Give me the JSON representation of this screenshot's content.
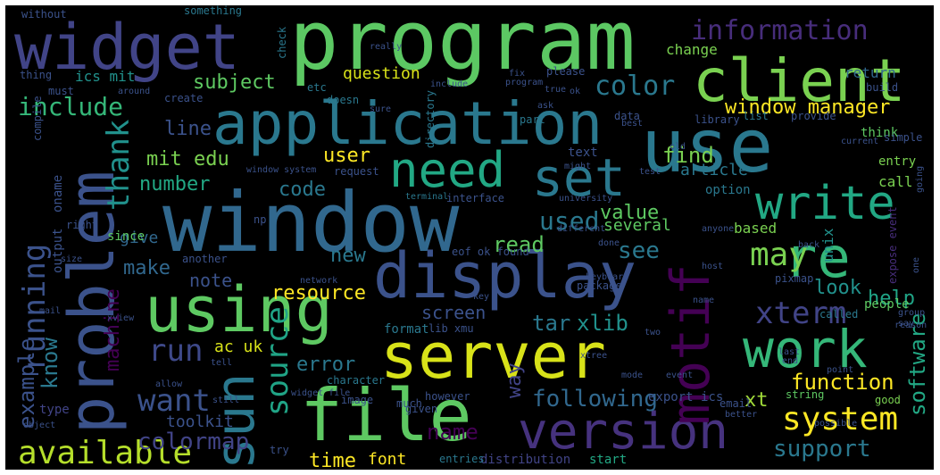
{
  "words": [
    {
      "text": "program",
      "color": "#5cc863"
    },
    {
      "text": "widget",
      "color": "#414487"
    },
    {
      "text": "client",
      "color": "#7ad151"
    },
    {
      "text": "application",
      "color": "#2a788e"
    },
    {
      "text": "use",
      "color": "#2a788e"
    },
    {
      "text": "window",
      "color": "#31688e"
    },
    {
      "text": "problem",
      "color": "#3b528b"
    },
    {
      "text": "display",
      "color": "#3b528b"
    },
    {
      "text": "using",
      "color": "#5ec962"
    },
    {
      "text": "server",
      "color": "#d8e219"
    },
    {
      "text": "file",
      "color": "#5ec962"
    },
    {
      "text": "version",
      "color": "#46327e"
    },
    {
      "text": "sun",
      "color": "#2a788e"
    },
    {
      "text": "motif",
      "color": "#440154"
    },
    {
      "text": "work",
      "color": "#35b779"
    },
    {
      "text": "re",
      "color": "#35b779"
    },
    {
      "text": "set",
      "color": "#2a788e"
    },
    {
      "text": "need",
      "color": "#22a884"
    },
    {
      "text": "write",
      "color": "#22a884"
    },
    {
      "text": "information",
      "color": "#472d7b"
    },
    {
      "text": "window manager",
      "color": "#fde725"
    },
    {
      "text": "include",
      "color": "#35b779"
    },
    {
      "text": "subject",
      "color": "#5ec962"
    },
    {
      "text": "color",
      "color": "#2a788e"
    },
    {
      "text": "thank",
      "color": "#21918c"
    },
    {
      "text": "line",
      "color": "#3b528b"
    },
    {
      "text": "mit edu",
      "color": "#7ad151"
    },
    {
      "text": "may",
      "color": "#7ad151"
    },
    {
      "text": "xterm",
      "color": "#414487"
    },
    {
      "text": "system",
      "color": "#fde725"
    },
    {
      "text": "available",
      "color": "#b5de2b"
    },
    {
      "text": "running",
      "color": "#3b528b"
    },
    {
      "text": "want",
      "color": "#3b528b"
    },
    {
      "text": "run",
      "color": "#3e4989"
    },
    {
      "text": "source",
      "color": "#20a486"
    },
    {
      "text": "error",
      "color": "#2a788e"
    },
    {
      "text": "function",
      "color": "#fde725"
    },
    {
      "text": "support",
      "color": "#2a788e"
    },
    {
      "text": "following",
      "color": "#31688e"
    },
    {
      "text": "colormap",
      "color": "#414487"
    },
    {
      "text": "example",
      "color": "#3b528b"
    },
    {
      "text": "know",
      "color": "#2a788e"
    },
    {
      "text": "machine",
      "color": "#440154"
    },
    {
      "text": "resource",
      "color": "#fde725"
    },
    {
      "text": "make",
      "color": "#31688e"
    },
    {
      "text": "note",
      "color": "#3b528b"
    },
    {
      "text": "screen",
      "color": "#3b528b"
    },
    {
      "text": "tar",
      "color": "#2a788e"
    },
    {
      "text": "xlib",
      "color": "#21918c"
    },
    {
      "text": "look",
      "color": "#21918c"
    },
    {
      "text": "help",
      "color": "#20a486"
    },
    {
      "text": "find",
      "color": "#7ad151"
    },
    {
      "text": "used",
      "color": "#2a788e"
    },
    {
      "text": "value",
      "color": "#5ec962"
    },
    {
      "text": "several",
      "color": "#5ec962"
    },
    {
      "text": "read",
      "color": "#5ec962"
    },
    {
      "text": "see",
      "color": "#2a788e"
    },
    {
      "text": "new",
      "color": "#2a788e"
    },
    {
      "text": "user",
      "color": "#fde725"
    },
    {
      "text": "code",
      "color": "#2a788e"
    },
    {
      "text": "number",
      "color": "#22a884"
    },
    {
      "text": "give",
      "color": "#31688e"
    },
    {
      "text": "time",
      "color": "#fde725"
    },
    {
      "text": "font",
      "color": "#fde725"
    },
    {
      "text": "name",
      "color": "#440154"
    },
    {
      "text": "xt",
      "color": "#a0da39"
    },
    {
      "text": "way",
      "color": "#414487"
    },
    {
      "text": "software",
      "color": "#22a884"
    },
    {
      "text": "question",
      "color": "#d8e219"
    },
    {
      "text": "ics mit",
      "color": "#21918c"
    },
    {
      "text": "ac uk",
      "color": "#d8e219"
    },
    {
      "text": "toolkit",
      "color": "#3b528b"
    },
    {
      "text": "article",
      "color": "#2a788e"
    },
    {
      "text": "change",
      "color": "#7ad151"
    },
    {
      "text": "return",
      "color": "#31688e"
    },
    {
      "text": "based",
      "color": "#7ad151"
    },
    {
      "text": "unix",
      "color": "#21918c"
    },
    {
      "text": "entry",
      "color": "#7ad151"
    },
    {
      "text": "call",
      "color": "#7ad151"
    },
    {
      "text": "option",
      "color": "#2a788e"
    },
    {
      "text": "text",
      "color": "#3b528b"
    },
    {
      "text": "people",
      "color": "#5ec962"
    },
    {
      "text": "output",
      "color": "#3b528b"
    },
    {
      "text": "oname",
      "color": "#3b528b"
    },
    {
      "text": "type",
      "color": "#414487"
    },
    {
      "text": "since",
      "color": "#5ec962"
    },
    {
      "text": "another",
      "color": "#3b528b"
    },
    {
      "text": "directory",
      "color": "#2a788e"
    },
    {
      "text": "interface",
      "color": "#3b528b"
    },
    {
      "text": "terminal",
      "color": "#2a788e"
    },
    {
      "text": "export ics",
      "color": "#3b528b"
    },
    {
      "text": "expose event",
      "color": "#472d7b"
    },
    {
      "text": "distribution",
      "color": "#414487"
    },
    {
      "text": "entries",
      "color": "#2a788e"
    },
    {
      "text": "start",
      "color": "#22a884"
    },
    {
      "text": "format",
      "color": "#2a788e"
    },
    {
      "text": "lib xmu",
      "color": "#3b528b"
    },
    {
      "text": "character",
      "color": "#2a788e"
    },
    {
      "text": "something",
      "color": "#2a788e"
    },
    {
      "text": "without",
      "color": "#3b528b"
    },
    {
      "text": "check",
      "color": "#2a788e"
    },
    {
      "text": "string",
      "color": "#5ec962"
    },
    {
      "text": "part",
      "color": "#2a788e"
    },
    {
      "text": "create",
      "color": "#3b528b"
    },
    {
      "text": "please",
      "color": "#3b528b"
    },
    {
      "text": "data",
      "color": "#3b528b"
    },
    {
      "text": "library",
      "color": "#3b528b"
    },
    {
      "text": "think",
      "color": "#5ec962"
    },
    {
      "text": "build",
      "color": "#3b528b"
    },
    {
      "text": "image",
      "color": "#3b528b"
    },
    {
      "text": "much",
      "color": "#3b528b"
    },
    {
      "text": "however",
      "color": "#3b528b"
    },
    {
      "text": "good",
      "color": "#7ad151"
    },
    {
      "text": "package",
      "color": "#3b528b"
    },
    {
      "text": "called",
      "color": "#2a788e"
    },
    {
      "text": "done",
      "color": "#3b528b"
    },
    {
      "text": "pixmap",
      "color": "#3b528b"
    },
    {
      "text": "etc",
      "color": "#2a788e"
    },
    {
      "text": "doesn",
      "color": "#2a788e"
    },
    {
      "text": "thing",
      "color": "#3b528b"
    },
    {
      "text": "must",
      "color": "#3b528b"
    },
    {
      "text": "email",
      "color": "#3b528b"
    },
    {
      "text": "list",
      "color": "#2a788e"
    },
    {
      "text": "simple",
      "color": "#3b528b"
    },
    {
      "text": "really",
      "color": "#3b528b"
    },
    {
      "text": "provide",
      "color": "#3b528b"
    },
    {
      "text": "request",
      "color": "#3b528b"
    },
    {
      "text": "given",
      "color": "#3b528b"
    },
    {
      "text": "try",
      "color": "#3b528b"
    },
    {
      "text": "tell",
      "color": "#3b528b"
    },
    {
      "text": "allow",
      "color": "#3b528b"
    },
    {
      "text": "compile",
      "color": "#3b528b"
    },
    {
      "text": "window system",
      "color": "#3b528b"
    },
    {
      "text": "np",
      "color": "#3b528b"
    },
    {
      "text": "university",
      "color": "#3b528b"
    },
    {
      "text": "different",
      "color": "#3b528b"
    },
    {
      "text": "eof ok found",
      "color": "#3b528b"
    },
    {
      "text": "anyone",
      "color": "#3b528b"
    },
    {
      "text": "possible",
      "color": "#3b528b"
    },
    {
      "text": "better",
      "color": "#3b528b"
    },
    {
      "text": "group",
      "color": "#3b528b"
    },
    {
      "text": "around",
      "color": "#3b528b"
    },
    {
      "text": "widget file",
      "color": "#3b528b"
    },
    {
      "text": "sure",
      "color": "#3b528b"
    },
    {
      "text": "two",
      "color": "#3b528b"
    },
    {
      "text": "xtree",
      "color": "#3b528b"
    },
    {
      "text": "test",
      "color": "#3b528b"
    },
    {
      "text": "best",
      "color": "#3b528b"
    },
    {
      "text": "fix",
      "color": "#3b528b"
    },
    {
      "text": "ok",
      "color": "#3b528b"
    },
    {
      "text": "keyboard",
      "color": "#3b528b"
    },
    {
      "text": "current",
      "color": "#3b528b"
    },
    {
      "text": "might",
      "color": "#3b528b"
    },
    {
      "text": "name",
      "color": "#3b528b"
    },
    {
      "text": "network",
      "color": "#3b528b"
    },
    {
      "text": "key",
      "color": "#3b528b"
    },
    {
      "text": "reason",
      "color": "#3b528b"
    },
    {
      "text": "size",
      "color": "#3b528b"
    },
    {
      "text": "mail",
      "color": "#3b528b"
    },
    {
      "text": "say",
      "color": "#3b528b"
    },
    {
      "text": "xview",
      "color": "#3b528b"
    },
    {
      "text": "point",
      "color": "#3b528b"
    },
    {
      "text": "still",
      "color": "#3b528b"
    },
    {
      "text": "object",
      "color": "#3b528b"
    },
    {
      "text": "right",
      "color": "#3b528b"
    },
    {
      "text": "old",
      "color": "#3b528b"
    },
    {
      "text": "program",
      "color": "#3b528b"
    },
    {
      "text": "mode",
      "color": "#3b528b"
    },
    {
      "text": "true",
      "color": "#3b528b"
    },
    {
      "text": "host",
      "color": "#3b528b"
    },
    {
      "text": "include",
      "color": "#3b528b"
    },
    {
      "text": "event",
      "color": "#3b528b"
    },
    {
      "text": "last",
      "color": "#3b528b"
    },
    {
      "text": "end",
      "color": "#3b528b"
    },
    {
      "text": "ask",
      "color": "#3b528b"
    },
    {
      "text": "going",
      "color": "#3b528b"
    },
    {
      "text": "one",
      "color": "#3b528b"
    },
    {
      "text": "back",
      "color": "#3b528b"
    }
  ]
}
